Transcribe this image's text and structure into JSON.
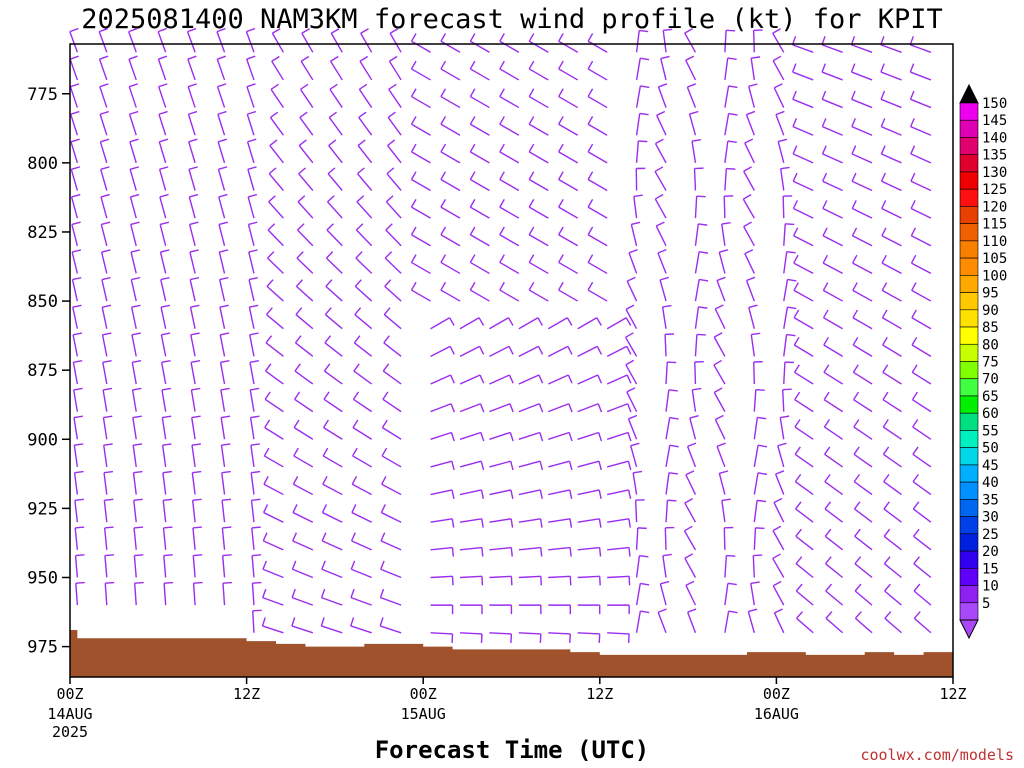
{
  "title": "2025081400 NAM3KM forecast wind profile (kt) for KPIT",
  "credit": "coolwx.com/models",
  "chart_data": {
    "type": "wind_barb_profile",
    "title": "2025081400 NAM3KM forecast wind profile (kt) for KPIT",
    "xlabel": "Forecast Time (UTC)",
    "ylabel": "",
    "x_unit": "forecast hour",
    "xlim": [
      0,
      60
    ],
    "ylim": [
      986,
      757
    ],
    "y_axis": "pressure (hPa), decreasing upward",
    "x_ticks": [
      {
        "hour": 0,
        "label": "00Z",
        "sub": [
          "14AUG",
          "2025"
        ]
      },
      {
        "hour": 12,
        "label": "12Z",
        "sub": []
      },
      {
        "hour": 24,
        "label": "00Z",
        "sub": [
          "15AUG"
        ]
      },
      {
        "hour": 36,
        "label": "12Z",
        "sub": []
      },
      {
        "hour": 48,
        "label": "00Z",
        "sub": [
          "16AUG"
        ]
      },
      {
        "hour": 60,
        "label": "12Z",
        "sub": []
      }
    ],
    "y_ticks": [
      775,
      800,
      825,
      850,
      875,
      900,
      925,
      950,
      975
    ],
    "barb_color": "#9c2cf0",
    "terrain_color": "#a0522d",
    "pressure_levels": [
      760,
      770,
      780,
      790,
      800,
      810,
      820,
      830,
      840,
      850,
      860,
      870,
      880,
      890,
      900,
      910,
      920,
      930,
      940,
      950,
      960,
      970
    ],
    "wind_dir_deg_sample": {
      "hours_0_12": "north-northwest aloft, north to north-northeast near surface",
      "hours_24_36": "northwest to west aloft, east-northeast near surface",
      "hours_48_60": "north aloft shifting to west-northwest"
    },
    "wind_speed_kt_range": [
      0,
      15
    ],
    "surface_pressure": {
      "hours": [
        0,
        0.5,
        5,
        10,
        12,
        14,
        16,
        20,
        24,
        26,
        30,
        34,
        36,
        40,
        42,
        46,
        48,
        50,
        52,
        54,
        56,
        58,
        60
      ],
      "hpa": [
        969,
        972,
        972,
        972,
        973,
        974,
        975,
        974,
        975,
        976,
        976,
        977,
        978,
        978,
        978,
        977,
        977,
        978,
        978,
        977,
        978,
        977,
        978
      ]
    },
    "colorbar": {
      "labels": [
        150,
        145,
        140,
        135,
        130,
        125,
        120,
        115,
        110,
        105,
        100,
        95,
        90,
        85,
        80,
        75,
        70,
        65,
        60,
        55,
        50,
        45,
        40,
        35,
        30,
        25,
        20,
        15,
        10,
        5
      ],
      "colors": [
        "#000000",
        "#ee00ee",
        "#e000b4",
        "#e0006e",
        "#e0002e",
        "#f00000",
        "#ff1010",
        "#e84000",
        "#f06000",
        "#f88000",
        "#ff8c00",
        "#ffa800",
        "#ffc800",
        "#ffe000",
        "#ffff00",
        "#c8ff00",
        "#80ff00",
        "#40ff40",
        "#00f000",
        "#00e080",
        "#00f0c0",
        "#00d8e8",
        "#00b0ff",
        "#0090ff",
        "#0068f0",
        "#0040e8",
        "#0020e0",
        "#3000f0",
        "#6000f8",
        "#9020f0",
        "#a848f8"
      ]
    }
  }
}
